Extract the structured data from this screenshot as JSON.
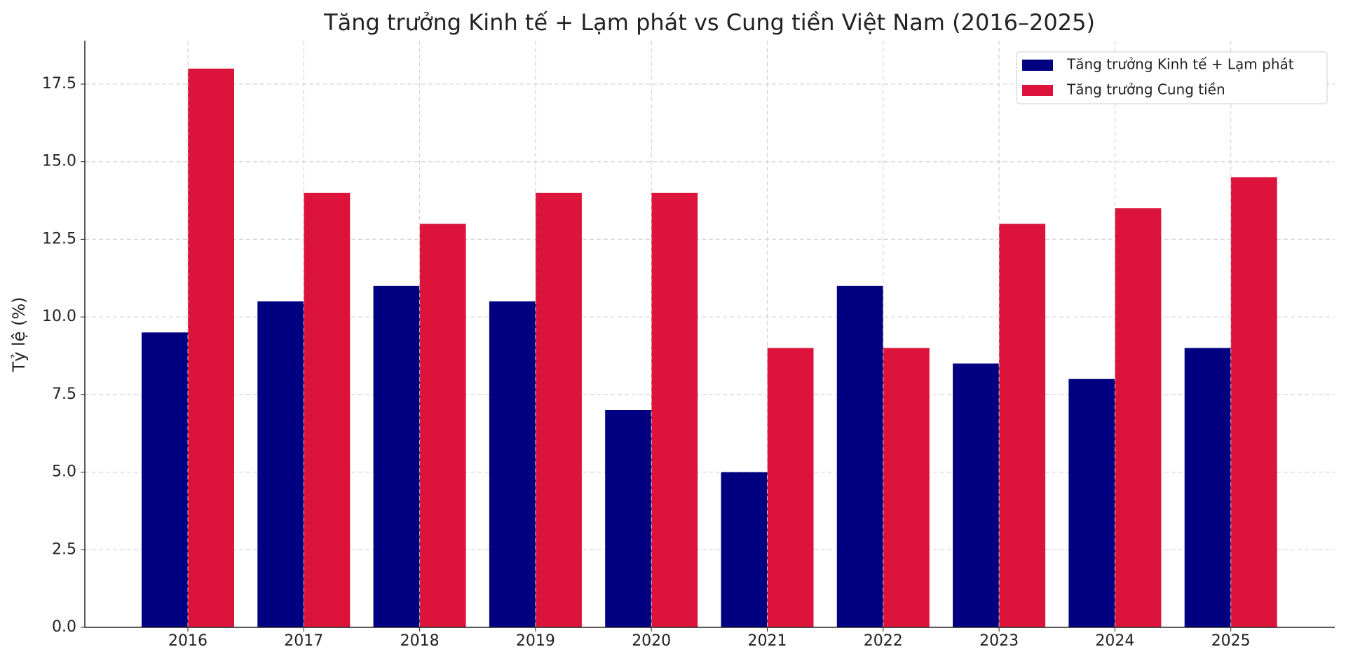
{
  "chart_data": {
    "type": "bar",
    "title": "Tăng trưởng Kinh tế + Lạm phát vs Cung tiền Việt Nam (2016–2025)",
    "y_label": "Tỷ lệ (%)",
    "categories": [
      "2016",
      "2017",
      "2018",
      "2019",
      "2020",
      "2021",
      "2022",
      "2023",
      "2024",
      "2025"
    ],
    "series": [
      {
        "name": "Tăng trưởng Kinh tế + Lạm phát",
        "color": "#000080",
        "values": [
          9.5,
          10.5,
          11,
          10.5,
          7,
          5,
          11,
          8.5,
          8,
          9
        ]
      },
      {
        "name": "Tăng trưởng Cung tiền",
        "color": "#dc143c",
        "values": [
          18,
          14,
          13,
          14,
          14,
          9,
          9,
          13,
          13.5,
          14.5
        ]
      }
    ],
    "ylim": [
      0,
      18.9
    ],
    "yticks": [
      {
        "value": 0,
        "label": "0.0"
      },
      2.5,
      {
        "value": 5,
        "label": "5.0"
      },
      7.5,
      {
        "value": 10,
        "label": "10.0"
      },
      12.5,
      {
        "value": 15,
        "label": "15.0"
      },
      17.5
    ],
    "grid": true,
    "legend": "upper right"
  }
}
